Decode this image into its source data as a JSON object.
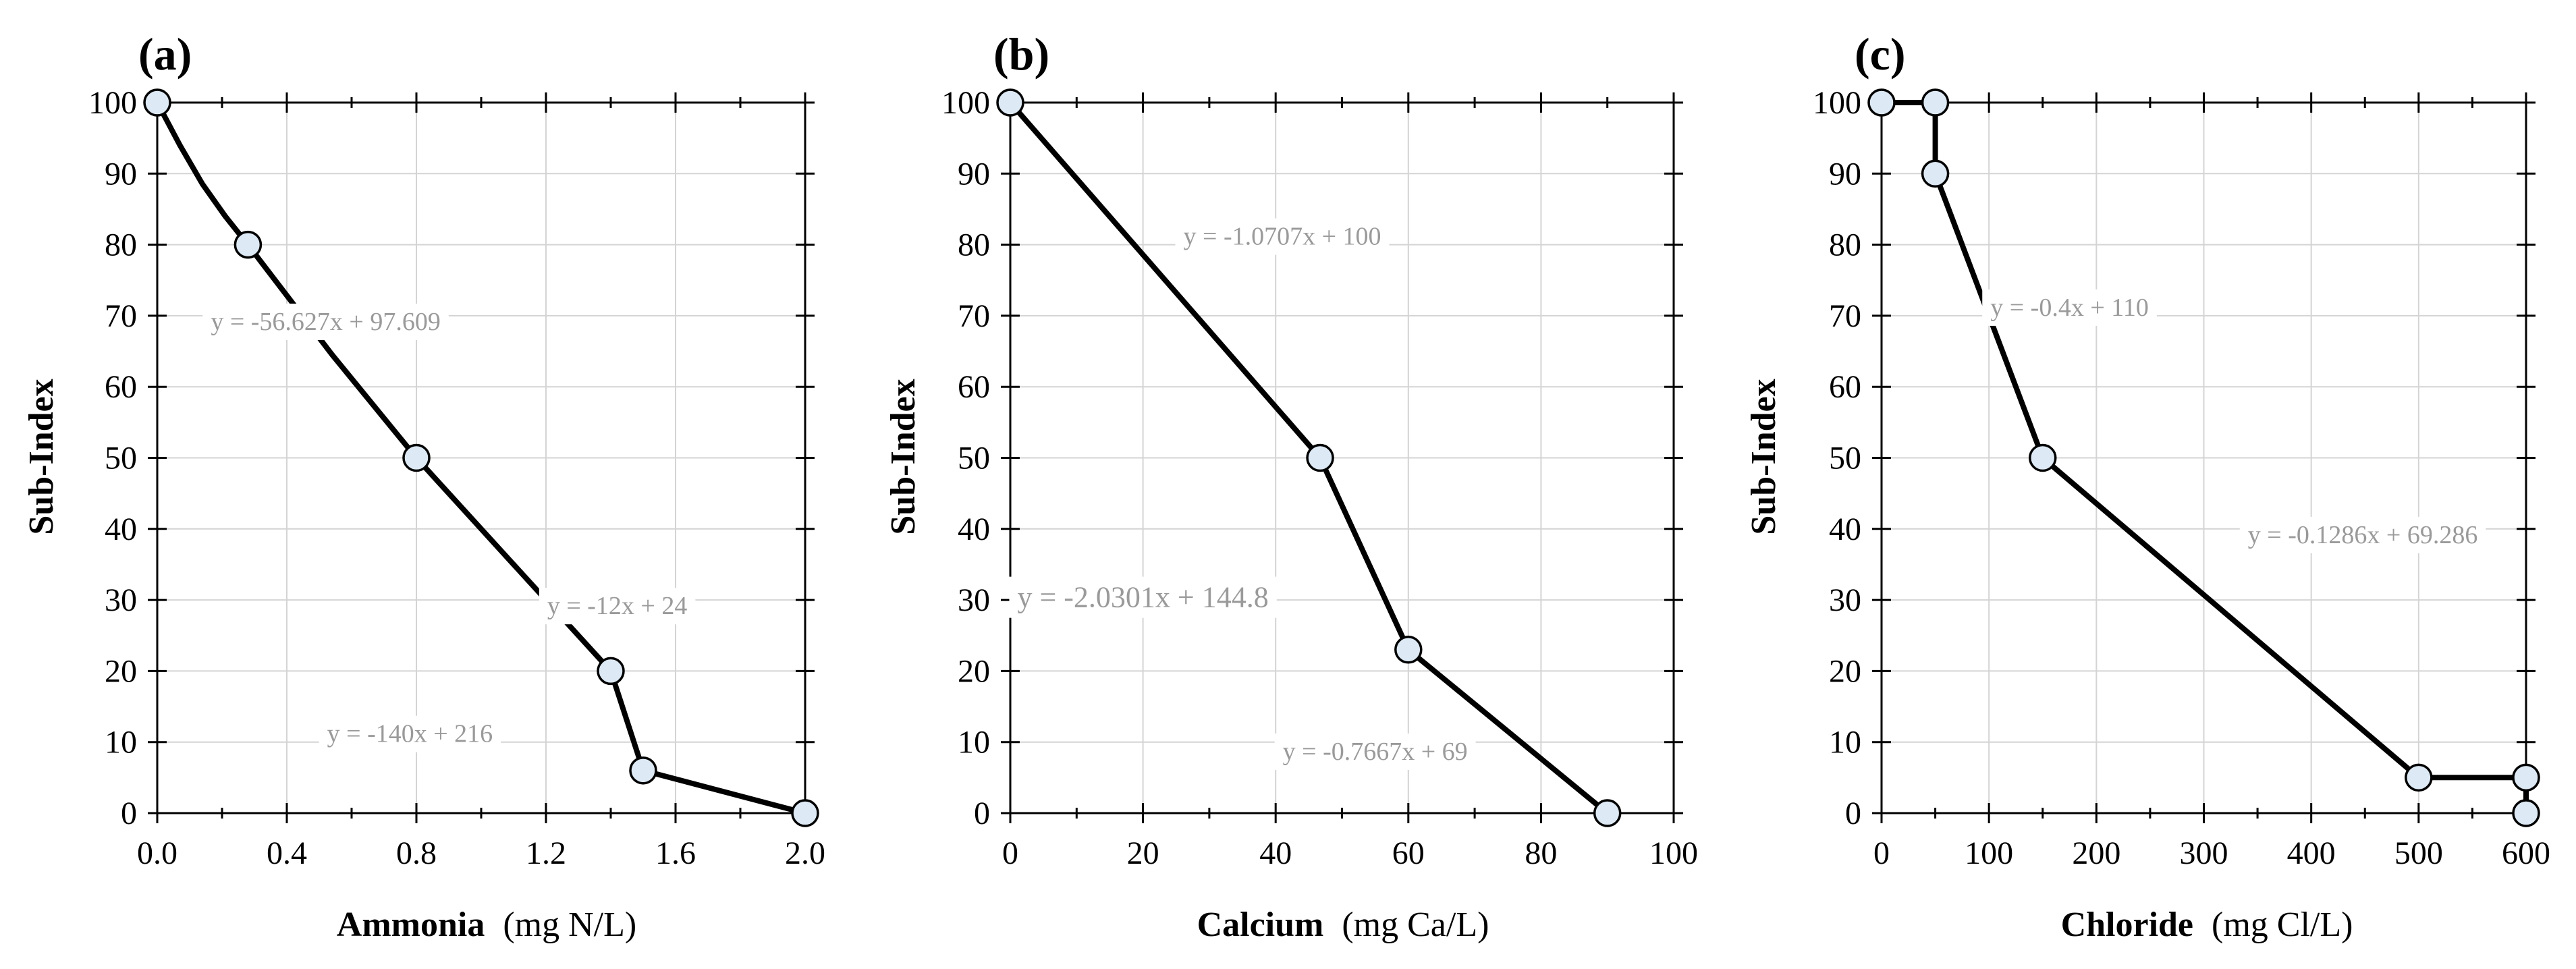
{
  "chart_data": [
    {
      "type": "line",
      "panel_label": "(a)",
      "xlabel_bold": "Ammonia",
      "xlabel_unit": "(mg N/L)",
      "ylabel": "Sub-Index",
      "xlim": [
        0,
        2.0
      ],
      "ylim": [
        0,
        100
      ],
      "xticks": [
        "0.0",
        "0.4",
        "0.8",
        "1.2",
        "1.6",
        "2.0"
      ],
      "xtick_values": [
        0,
        0.4,
        0.8,
        1.2,
        1.6,
        2.0
      ],
      "xminor": [
        0.2,
        0.6,
        1.0,
        1.4,
        1.8
      ],
      "yticks": [
        "0",
        "10",
        "20",
        "30",
        "40",
        "50",
        "60",
        "70",
        "80",
        "90",
        "100"
      ],
      "ytick_values": [
        0,
        10,
        20,
        30,
        40,
        50,
        60,
        70,
        80,
        90,
        100
      ],
      "grid": true,
      "points": [
        [
          0,
          100
        ],
        [
          0.28,
          80
        ],
        [
          0.8,
          50
        ],
        [
          1.4,
          20
        ],
        [
          1.5,
          6
        ],
        [
          2.0,
          0
        ]
      ],
      "curve": [
        [
          0,
          100
        ],
        [
          0.07,
          94
        ],
        [
          0.14,
          88.5
        ],
        [
          0.21,
          84
        ],
        [
          0.28,
          80
        ],
        [
          0.54,
          64.5
        ],
        [
          0.8,
          50
        ],
        [
          1.1,
          35
        ],
        [
          1.4,
          20
        ],
        [
          1.5,
          6
        ],
        [
          2.0,
          0
        ]
      ],
      "annotations": [
        {
          "text": "y = -56.627x + 97.609",
          "x": 0.52,
          "y": 68,
          "size": "small"
        },
        {
          "text": "y = -12x + 24",
          "x": 1.42,
          "y": 28,
          "size": "small"
        },
        {
          "text": "y = -140x + 216",
          "x": 0.78,
          "y": 10,
          "size": "small"
        }
      ]
    },
    {
      "type": "line",
      "panel_label": "(b)",
      "xlabel_bold": "Calcium",
      "xlabel_unit": "(mg Ca/L)",
      "ylabel": "Sub-Index",
      "xlim": [
        0,
        100
      ],
      "ylim": [
        0,
        100
      ],
      "xticks": [
        "0",
        "20",
        "40",
        "60",
        "80",
        "100"
      ],
      "xtick_values": [
        0,
        20,
        40,
        60,
        80,
        100
      ],
      "xminor": [
        10,
        30,
        50,
        70,
        90
      ],
      "yticks": [
        "0",
        "10",
        "20",
        "30",
        "40",
        "50",
        "60",
        "70",
        "80",
        "90",
        "100"
      ],
      "ytick_values": [
        0,
        10,
        20,
        30,
        40,
        50,
        60,
        70,
        80,
        90,
        100
      ],
      "grid": true,
      "points": [
        [
          0,
          100
        ],
        [
          46.7,
          50
        ],
        [
          60,
          23
        ],
        [
          90,
          0
        ]
      ],
      "curve": [
        [
          0,
          100
        ],
        [
          46.7,
          50
        ],
        [
          60,
          23
        ],
        [
          90,
          0
        ]
      ],
      "annotations": [
        {
          "text": "y = -1.0707x + 100",
          "x": 41,
          "y": 80,
          "size": "small"
        },
        {
          "text": "y = -2.0301x + 144.8",
          "x": 20,
          "y": 29,
          "size": "large"
        },
        {
          "text": "y = -0.7667x + 69",
          "x": 55,
          "y": 7.5,
          "size": "small"
        }
      ]
    },
    {
      "type": "line",
      "panel_label": "(c)",
      "xlabel_bold": "Chloride",
      "xlabel_unit": "(mg Cl/L)",
      "ylabel": "Sub-Index",
      "xlim": [
        0,
        600
      ],
      "ylim": [
        0,
        100
      ],
      "xticks": [
        "0",
        "100",
        "200",
        "300",
        "400",
        "500",
        "600"
      ],
      "xtick_values": [
        0,
        100,
        200,
        300,
        400,
        500,
        600
      ],
      "xminor": [
        50,
        150,
        250,
        350,
        450,
        550
      ],
      "yticks": [
        "0",
        "10",
        "20",
        "30",
        "40",
        "50",
        "60",
        "70",
        "80",
        "90",
        "100"
      ],
      "ytick_values": [
        0,
        10,
        20,
        30,
        40,
        50,
        60,
        70,
        80,
        90,
        100
      ],
      "grid": true,
      "points": [
        [
          0,
          100
        ],
        [
          50,
          100
        ],
        [
          50,
          90
        ],
        [
          150,
          50
        ],
        [
          500,
          5
        ],
        [
          600,
          5
        ],
        [
          600,
          0
        ]
      ],
      "curve": [
        [
          0,
          100
        ],
        [
          50,
          100
        ],
        [
          50,
          90
        ],
        [
          150,
          50
        ],
        [
          500,
          5
        ],
        [
          600,
          5
        ],
        [
          600,
          0
        ]
      ],
      "annotations": [
        {
          "text": "y = -0.4x + 110",
          "x": 175,
          "y": 70,
          "size": "small"
        },
        {
          "text": "y = -0.1286x + 69.286",
          "x": 448,
          "y": 38,
          "size": "small"
        }
      ]
    }
  ]
}
